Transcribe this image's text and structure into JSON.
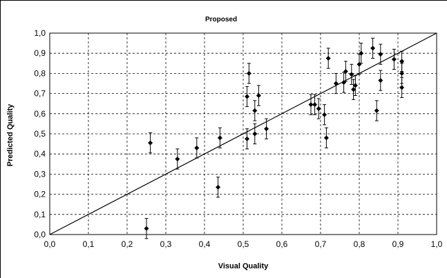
{
  "chart_data": {
    "type": "scatter",
    "title": "Proposed",
    "xlabel": "Visual Quality",
    "ylabel": "Predicted Quality",
    "xlim": [
      0,
      1
    ],
    "ylim": [
      0,
      1
    ],
    "x_ticks": [
      "0,0",
      "0,1",
      "0,2",
      "0,3",
      "0,4",
      "0,5",
      "0,6",
      "0,7",
      "0,8",
      "0,9",
      "1,0"
    ],
    "y_ticks": [
      "0,0",
      "0,1",
      "0,2",
      "0,3",
      "0,4",
      "0,5",
      "0,6",
      "0,7",
      "0,8",
      "0,9",
      "1,0"
    ],
    "grid": true,
    "reference_line": [
      [
        0,
        0
      ],
      [
        1,
        1
      ]
    ],
    "marker_color": "#000000",
    "points": [
      {
        "x": 0.25,
        "y": 0.03,
        "err": 0.05
      },
      {
        "x": 0.26,
        "y": 0.455,
        "err": 0.05
      },
      {
        "x": 0.33,
        "y": 0.375,
        "err": 0.05
      },
      {
        "x": 0.38,
        "y": 0.43,
        "err": 0.05
      },
      {
        "x": 0.435,
        "y": 0.235,
        "err": 0.05
      },
      {
        "x": 0.44,
        "y": 0.48,
        "err": 0.05
      },
      {
        "x": 0.51,
        "y": 0.475,
        "err": 0.05
      },
      {
        "x": 0.51,
        "y": 0.685,
        "err": 0.05
      },
      {
        "x": 0.515,
        "y": 0.8,
        "err": 0.05
      },
      {
        "x": 0.53,
        "y": 0.5,
        "err": 0.05
      },
      {
        "x": 0.53,
        "y": 0.615,
        "err": 0.05
      },
      {
        "x": 0.54,
        "y": 0.69,
        "err": 0.05
      },
      {
        "x": 0.56,
        "y": 0.525,
        "err": 0.05
      },
      {
        "x": 0.675,
        "y": 0.645,
        "err": 0.05
      },
      {
        "x": 0.685,
        "y": 0.645,
        "err": 0.05
      },
      {
        "x": 0.695,
        "y": 0.625,
        "err": 0.05
      },
      {
        "x": 0.71,
        "y": 0.595,
        "err": 0.05
      },
      {
        "x": 0.715,
        "y": 0.48,
        "err": 0.05
      },
      {
        "x": 0.72,
        "y": 0.875,
        "err": 0.05
      },
      {
        "x": 0.74,
        "y": 0.75,
        "err": 0.05
      },
      {
        "x": 0.76,
        "y": 0.755,
        "err": 0.05
      },
      {
        "x": 0.765,
        "y": 0.81,
        "err": 0.05
      },
      {
        "x": 0.78,
        "y": 0.795,
        "err": 0.05
      },
      {
        "x": 0.785,
        "y": 0.72,
        "err": 0.05
      },
      {
        "x": 0.79,
        "y": 0.74,
        "err": 0.05
      },
      {
        "x": 0.8,
        "y": 0.845,
        "err": 0.05
      },
      {
        "x": 0.805,
        "y": 0.9,
        "err": 0.05
      },
      {
        "x": 0.835,
        "y": 0.925,
        "err": 0.05
      },
      {
        "x": 0.845,
        "y": 0.615,
        "err": 0.05
      },
      {
        "x": 0.855,
        "y": 0.765,
        "err": 0.05
      },
      {
        "x": 0.855,
        "y": 0.895,
        "err": 0.05
      },
      {
        "x": 0.89,
        "y": 0.87,
        "err": 0.05
      },
      {
        "x": 0.91,
        "y": 0.86,
        "err": 0.05
      },
      {
        "x": 0.91,
        "y": 0.8,
        "err": 0.05
      },
      {
        "x": 0.91,
        "y": 0.73,
        "err": 0.05
      }
    ]
  }
}
